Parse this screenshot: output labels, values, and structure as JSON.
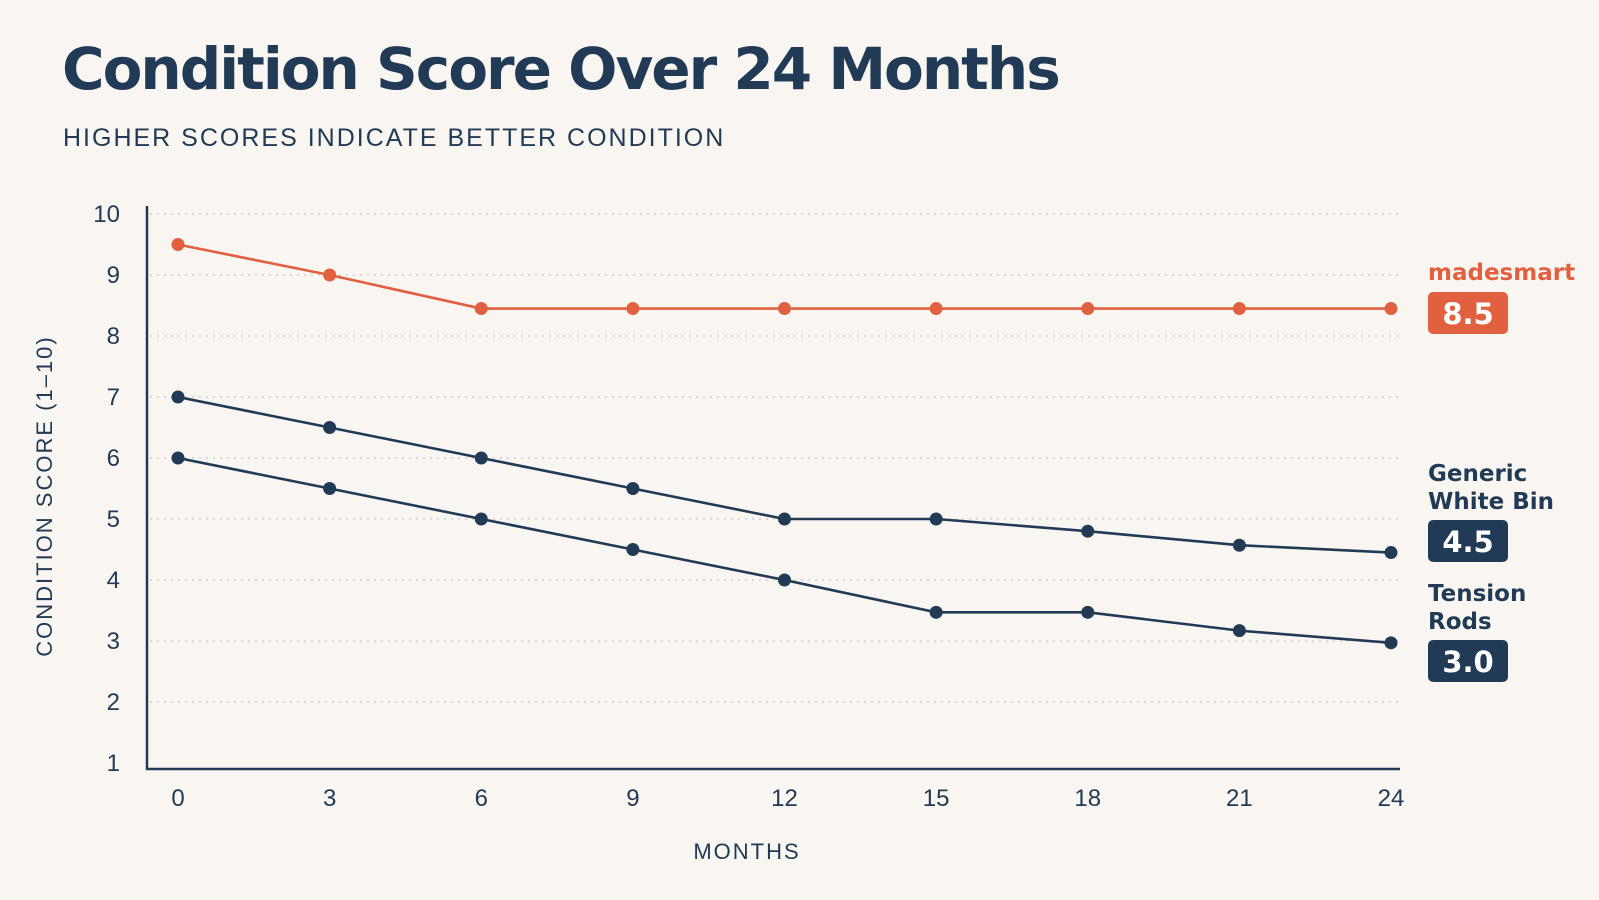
{
  "chart_data": {
    "type": "line",
    "title": "Condition Score Over 24 Months",
    "subtitle": "HIGHER SCORES INDICATE BETTER CONDITION",
    "xlabel": "MONTHS",
    "ylabel": "CONDITION SCORE (1–10)",
    "x": [
      0,
      3,
      6,
      9,
      12,
      15,
      18,
      21,
      24
    ],
    "xlim": [
      0,
      24
    ],
    "ylim": [
      1,
      10
    ],
    "yticks": [
      1,
      2,
      3,
      4,
      5,
      6,
      7,
      8,
      9,
      10
    ],
    "grid": true,
    "legend": "end-labels-right",
    "series": [
      {
        "name": "madesmart",
        "color": "#e0603f",
        "values": [
          9.5,
          9.0,
          8.45,
          8.45,
          8.45,
          8.45,
          8.45,
          8.45,
          8.45
        ],
        "end_label": "8.5"
      },
      {
        "name": "Generic White Bin",
        "color": "#213b56",
        "values": [
          7.0,
          6.5,
          6.0,
          5.5,
          5.0,
          5.0,
          4.8,
          4.57,
          4.45
        ],
        "end_label": "4.5"
      },
      {
        "name": "Tension Rods",
        "color": "#213b56",
        "values": [
          6.0,
          5.5,
          5.0,
          4.5,
          4.0,
          3.47,
          3.47,
          3.17,
          2.97
        ],
        "end_label": "3.0"
      }
    ]
  }
}
